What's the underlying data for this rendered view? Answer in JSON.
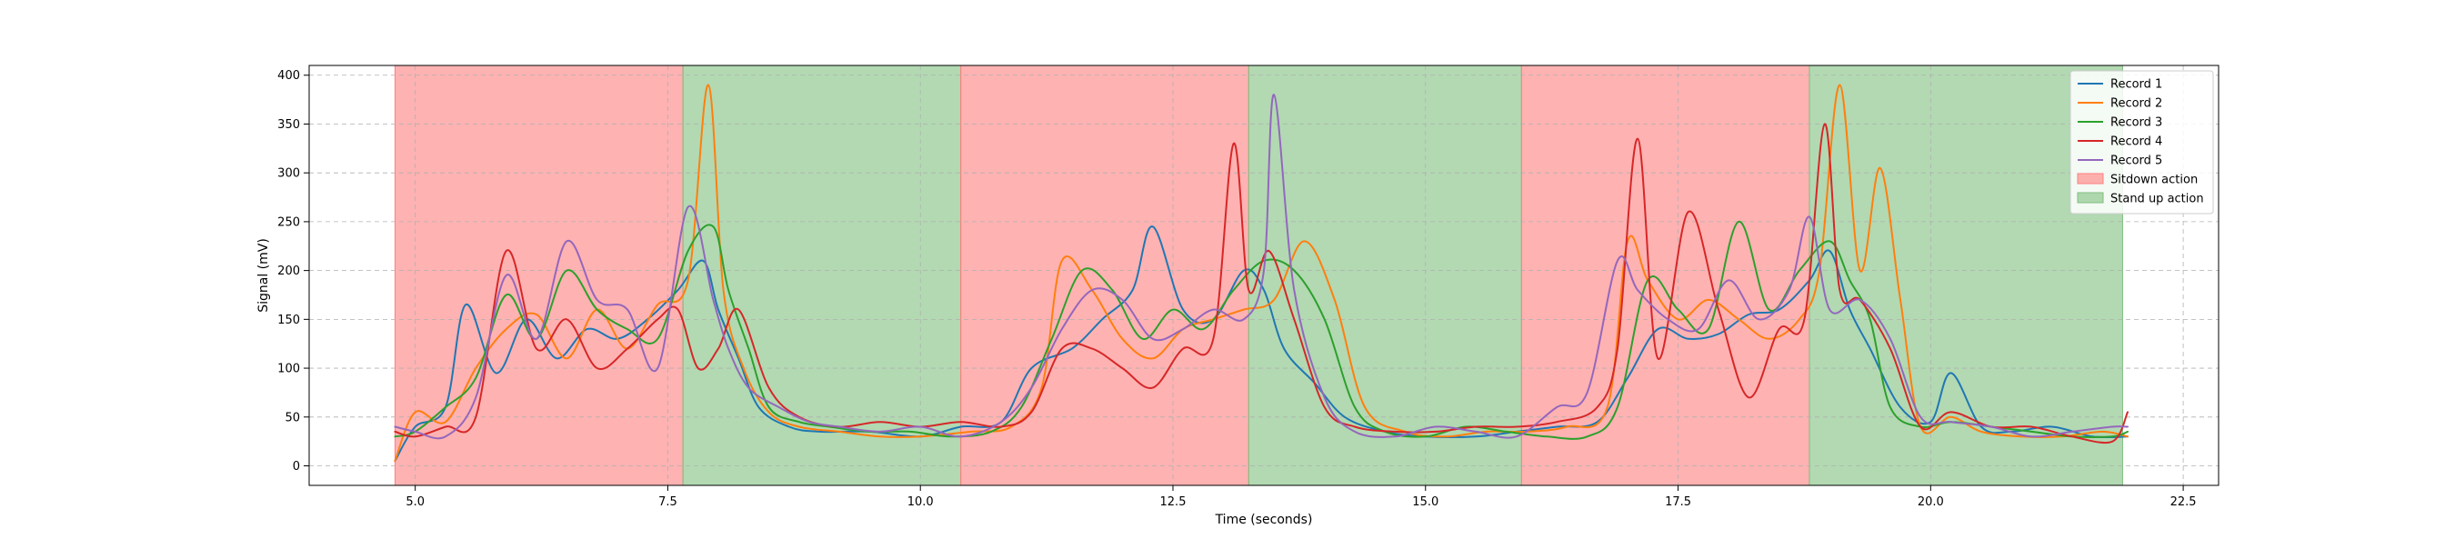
{
  "chart_data": {
    "type": "line",
    "xlabel": "Time (seconds)",
    "ylabel": "Signal (mV)",
    "xlim": [
      3.95,
      22.85
    ],
    "ylim": [
      -20,
      410
    ],
    "xticks": [
      5.0,
      7.5,
      10.0,
      12.5,
      15.0,
      17.5,
      20.0,
      22.5
    ],
    "xtick_labels": [
      "5.0",
      "7.5",
      "10.0",
      "12.5",
      "15.0",
      "17.5",
      "20.0",
      "22.5"
    ],
    "yticks": [
      0,
      50,
      100,
      150,
      200,
      250,
      300,
      350,
      400
    ],
    "ytick_labels": [
      "0",
      "50",
      "100",
      "150",
      "200",
      "250",
      "300",
      "350",
      "400"
    ],
    "grid": true,
    "legend_position": "top-right",
    "regions": [
      {
        "label": "Sitdown action",
        "start": 4.8,
        "end": 7.65,
        "color": "#ff7f7f"
      },
      {
        "label": "Stand up action",
        "start": 7.65,
        "end": 10.4,
        "color": "#7fbf7f"
      },
      {
        "label": "Sitdown action",
        "start": 10.4,
        "end": 13.25,
        "color": "#ff7f7f"
      },
      {
        "label": "Stand up action",
        "start": 13.25,
        "end": 15.95,
        "color": "#7fbf7f"
      },
      {
        "label": "Sitdown action",
        "start": 15.95,
        "end": 18.8,
        "color": "#ff7f7f"
      },
      {
        "label": "Stand up action",
        "start": 18.8,
        "end": 21.9,
        "color": "#7fbf7f"
      }
    ],
    "legend": [
      {
        "label": "Record 1",
        "kind": "line",
        "color": "#1f77b4"
      },
      {
        "label": "Record 2",
        "kind": "line",
        "color": "#ff7f0e"
      },
      {
        "label": "Record 3",
        "kind": "line",
        "color": "#2ca02c"
      },
      {
        "label": "Record 4",
        "kind": "line",
        "color": "#d62728"
      },
      {
        "label": "Record 5",
        "kind": "line",
        "color": "#9467bd"
      },
      {
        "label": "Sitdown action",
        "kind": "patch",
        "color": "#ff7f7f"
      },
      {
        "label": "Stand up action",
        "kind": "patch",
        "color": "#7fbf7f"
      }
    ],
    "series": [
      {
        "name": "Record 1",
        "color": "#1f77b4",
        "x": [
          4.8,
          5.0,
          5.3,
          5.5,
          5.8,
          6.1,
          6.4,
          6.7,
          7.0,
          7.3,
          7.6,
          7.85,
          8.0,
          8.2,
          8.4,
          8.7,
          9.0,
          9.5,
          10.0,
          10.4,
          10.8,
          11.1,
          11.5,
          11.8,
          12.1,
          12.3,
          12.6,
          12.9,
          13.2,
          13.4,
          13.6,
          13.9,
          14.2,
          14.6,
          15.0,
          15.5,
          15.9,
          16.3,
          16.7,
          17.0,
          17.3,
          17.6,
          17.9,
          18.2,
          18.5,
          18.8,
          19.0,
          19.2,
          19.4,
          19.7,
          20.0,
          20.2,
          20.5,
          20.8,
          21.2,
          21.6,
          21.95
        ],
        "values": [
          5,
          40,
          60,
          165,
          95,
          150,
          110,
          140,
          130,
          150,
          180,
          210,
          160,
          110,
          60,
          40,
          35,
          35,
          30,
          40,
          45,
          100,
          120,
          150,
          180,
          245,
          160,
          150,
          200,
          180,
          120,
          85,
          50,
          35,
          30,
          30,
          35,
          40,
          45,
          90,
          140,
          130,
          135,
          155,
          160,
          190,
          220,
          160,
          120,
          60,
          45,
          95,
          40,
          35,
          40,
          30,
          30
        ]
      },
      {
        "name": "Record 2",
        "color": "#ff7f0e",
        "x": [
          4.8,
          5.0,
          5.3,
          5.6,
          5.9,
          6.2,
          6.5,
          6.8,
          7.1,
          7.4,
          7.7,
          7.9,
          8.05,
          8.25,
          8.5,
          8.8,
          9.2,
          9.6,
          10.0,
          10.5,
          10.9,
          11.2,
          11.4,
          11.7,
          12.0,
          12.3,
          12.6,
          12.9,
          13.2,
          13.5,
          13.8,
          14.1,
          14.4,
          14.8,
          15.2,
          15.6,
          16.0,
          16.4,
          16.8,
          17.0,
          17.2,
          17.5,
          17.8,
          18.1,
          18.4,
          18.7,
          18.9,
          19.1,
          19.3,
          19.5,
          19.7,
          19.9,
          20.2,
          20.5,
          20.9,
          21.3,
          21.7,
          21.95
        ],
        "values": [
          5,
          55,
          45,
          100,
          140,
          155,
          110,
          160,
          120,
          165,
          190,
          390,
          180,
          100,
          55,
          40,
          35,
          30,
          30,
          35,
          40,
          80,
          210,
          180,
          130,
          110,
          140,
          150,
          160,
          170,
          230,
          170,
          60,
          35,
          30,
          35,
          35,
          40,
          60,
          230,
          190,
          150,
          170,
          150,
          130,
          150,
          200,
          390,
          200,
          305,
          170,
          40,
          50,
          35,
          30,
          30,
          35,
          30
        ]
      },
      {
        "name": "Record 3",
        "color": "#2ca02c",
        "x": [
          4.8,
          5.0,
          5.3,
          5.6,
          5.9,
          6.2,
          6.5,
          6.8,
          7.1,
          7.4,
          7.7,
          7.95,
          8.1,
          8.3,
          8.5,
          8.8,
          9.1,
          9.5,
          9.9,
          10.3,
          10.7,
          11.0,
          11.3,
          11.6,
          11.9,
          12.2,
          12.5,
          12.8,
          13.1,
          13.4,
          13.7,
          14.0,
          14.3,
          14.6,
          15.0,
          15.4,
          15.8,
          16.2,
          16.6,
          16.9,
          17.2,
          17.5,
          17.8,
          18.1,
          18.4,
          18.7,
          19.0,
          19.2,
          19.4,
          19.6,
          19.9,
          20.2,
          20.6,
          21.0,
          21.4,
          21.8,
          21.95
        ],
        "values": [
          30,
          35,
          60,
          90,
          175,
          130,
          200,
          160,
          140,
          130,
          220,
          245,
          180,
          120,
          60,
          45,
          40,
          35,
          35,
          30,
          35,
          60,
          130,
          200,
          180,
          130,
          160,
          140,
          180,
          210,
          200,
          150,
          60,
          35,
          30,
          40,
          35,
          30,
          30,
          60,
          190,
          160,
          140,
          250,
          160,
          200,
          230,
          190,
          150,
          60,
          40,
          45,
          40,
          35,
          30,
          30,
          35
        ]
      },
      {
        "name": "Record 4",
        "color": "#d62728",
        "x": [
          4.8,
          5.0,
          5.3,
          5.6,
          5.9,
          6.2,
          6.5,
          6.8,
          7.1,
          7.4,
          7.6,
          7.8,
          8.0,
          8.2,
          8.5,
          8.8,
          9.2,
          9.6,
          10.0,
          10.4,
          10.8,
          11.1,
          11.4,
          11.7,
          12.0,
          12.3,
          12.6,
          12.9,
          13.1,
          13.25,
          13.45,
          13.7,
          14.0,
          14.3,
          14.7,
          15.1,
          15.5,
          15.9,
          16.3,
          16.7,
          16.9,
          17.1,
          17.3,
          17.6,
          17.9,
          18.2,
          18.5,
          18.75,
          18.95,
          19.1,
          19.3,
          19.6,
          19.9,
          20.2,
          20.6,
          21.0,
          21.4,
          21.8,
          21.95
        ],
        "values": [
          35,
          30,
          40,
          50,
          220,
          120,
          150,
          100,
          120,
          150,
          160,
          100,
          120,
          160,
          80,
          50,
          40,
          45,
          40,
          45,
          40,
          55,
          120,
          120,
          100,
          80,
          120,
          130,
          330,
          180,
          220,
          150,
          60,
          40,
          35,
          35,
          40,
          40,
          45,
          60,
          120,
          335,
          110,
          260,
          160,
          70,
          140,
          150,
          350,
          180,
          170,
          120,
          40,
          55,
          40,
          40,
          30,
          25,
          55
        ]
      },
      {
        "name": "Record 5",
        "color": "#9467bd",
        "x": [
          4.8,
          5.0,
          5.3,
          5.6,
          5.9,
          6.2,
          6.5,
          6.8,
          7.1,
          7.4,
          7.7,
          7.95,
          8.1,
          8.3,
          8.6,
          8.9,
          9.2,
          9.6,
          10.0,
          10.4,
          10.8,
          11.1,
          11.4,
          11.7,
          12.0,
          12.3,
          12.6,
          12.9,
          13.2,
          13.4,
          13.5,
          13.7,
          14.0,
          14.3,
          14.7,
          15.1,
          15.5,
          15.9,
          16.3,
          16.6,
          16.9,
          17.1,
          17.4,
          17.7,
          18.0,
          18.3,
          18.6,
          18.8,
          19.0,
          19.3,
          19.6,
          19.9,
          20.2,
          20.6,
          21.0,
          21.4,
          21.8,
          21.95
        ],
        "values": [
          40,
          35,
          30,
          70,
          195,
          130,
          230,
          170,
          160,
          100,
          265,
          170,
          120,
          80,
          60,
          45,
          40,
          35,
          40,
          30,
          45,
          80,
          140,
          180,
          170,
          130,
          140,
          160,
          150,
          200,
          380,
          180,
          70,
          35,
          30,
          40,
          35,
          30,
          60,
          75,
          210,
          180,
          150,
          140,
          190,
          150,
          180,
          255,
          160,
          170,
          130,
          50,
          45,
          40,
          30,
          35,
          40,
          40
        ]
      }
    ]
  }
}
